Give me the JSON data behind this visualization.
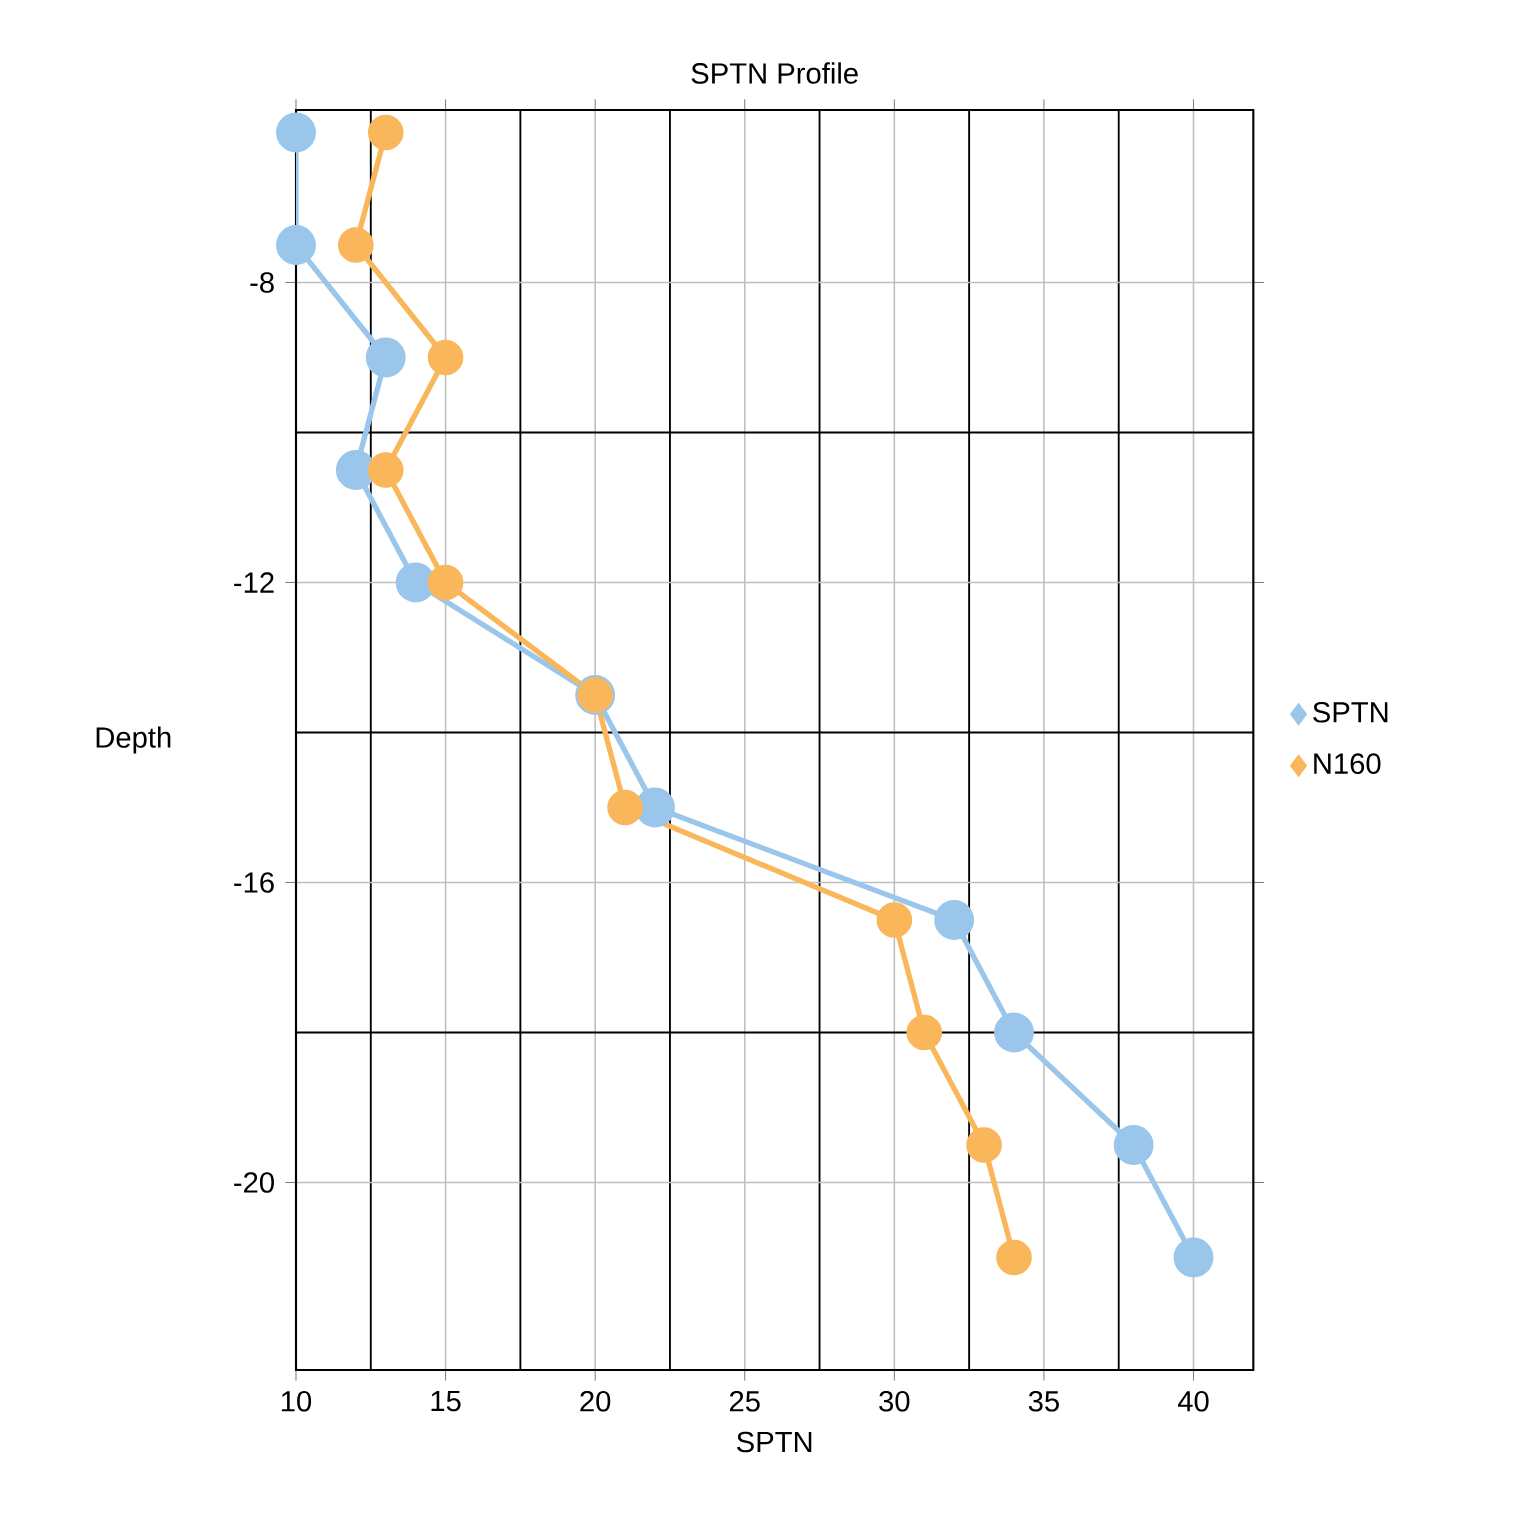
{
  "chart_data": {
    "type": "line",
    "title": "SPTN Profile",
    "xlabel": "SPTN",
    "ylabel": "Depth",
    "xlim": [
      10,
      42
    ],
    "xticks": [
      10,
      15,
      20,
      25,
      30,
      35,
      40
    ],
    "ylim": [
      -22.5,
      -5.7
    ],
    "yticks": [
      -8,
      -12,
      -16,
      -20
    ],
    "grid": true,
    "legend": "right",
    "marker": "circle",
    "line_style": "solid",
    "series": [
      {
        "name": "SPTN",
        "color": "#9ac6ec",
        "x": [
          10,
          10,
          13,
          12,
          14,
          20,
          22,
          32,
          34,
          38,
          40
        ],
        "values": [
          -6,
          -7.5,
          -9,
          -10.5,
          -12,
          -13.5,
          -15,
          -16.5,
          -18,
          -19.5,
          -21
        ]
      },
      {
        "name": "N160",
        "color": "#f9b65b",
        "x": [
          13,
          12,
          15,
          13,
          15,
          20,
          21,
          30,
          31,
          33,
          34
        ],
        "values": [
          -6,
          -7.5,
          -9,
          -10.5,
          -12,
          -13.5,
          -15,
          -16.5,
          -18,
          -19.5,
          -21
        ]
      }
    ]
  }
}
